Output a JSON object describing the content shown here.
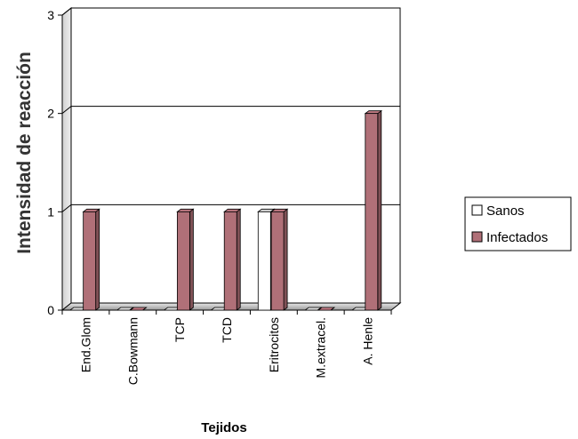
{
  "chart_data": {
    "type": "bar",
    "title": "",
    "xlabel": "Tejidos",
    "ylabel": "Intensidad de reacción",
    "ylim": [
      0,
      3
    ],
    "yticks": [
      "0",
      "1",
      "2",
      "3"
    ],
    "grid": true,
    "legend_position": "right",
    "categories": [
      "End.Glom",
      "C.Bowmann",
      "TCP",
      "TCD",
      "Eritrocitos",
      "M.extracel.",
      "A. Henle"
    ],
    "series": [
      {
        "name": "Sanos",
        "values": [
          0,
          0,
          0,
          0,
          1,
          0,
          0
        ],
        "color": "#ffffff"
      },
      {
        "name": "Infectados",
        "values": [
          1,
          0,
          1,
          1,
          1,
          0,
          2
        ],
        "color": "#b07078"
      }
    ]
  }
}
